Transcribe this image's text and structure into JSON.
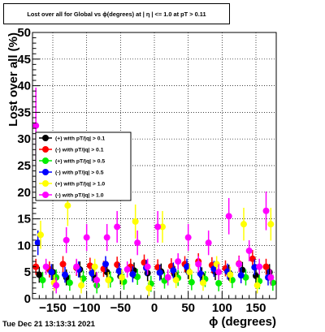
{
  "chart_data": {
    "type": "scatter",
    "title": "Lost over all for Global vs ϕ(degrees) at | η | <= 1.0 at pT > 0.11",
    "xlabel": "ϕ (degrees)",
    "ylabel": "Lost over all (%)",
    "xlim": [
      -180,
      180
    ],
    "ylim": [
      0,
      50
    ],
    "x_ticks": [
      -150,
      -100,
      -50,
      0,
      50,
      100,
      150
    ],
    "x_tick_labels": [
      "−150",
      "−100",
      "−50",
      "0",
      "50",
      "100",
      "150"
    ],
    "y_ticks": [
      0,
      5,
      10,
      15,
      20,
      25,
      30,
      35,
      40,
      45,
      50
    ],
    "y_tick_labels": [
      "0",
      "5",
      "10",
      "15",
      "20",
      "25",
      "30",
      "35",
      "40",
      "45",
      "50"
    ],
    "grid": true,
    "legend_position": "middle-left",
    "series": [
      {
        "name": "(+) with pT/|q| > 0.1",
        "color": "#000000",
        "x": [
          -170,
          -150,
          -130,
          -110,
          -90,
          -70,
          -50,
          -30,
          -10,
          10,
          30,
          50,
          70,
          90,
          110,
          130,
          150,
          170
        ],
        "y": [
          4.5,
          5.0,
          4.0,
          5.5,
          4.5,
          5.0,
          4.2,
          5.3,
          4.8,
          5.1,
          4.6,
          5.2,
          4.4,
          5.0,
          4.9,
          5.4,
          4.3,
          5.0
        ]
      },
      {
        "name": "(-) with pT/|q| > 0.1",
        "color": "#ff0000",
        "x": [
          -175,
          -155,
          -135,
          -115,
          -95,
          -75,
          -55,
          -35,
          -15,
          5,
          25,
          45,
          65,
          85,
          105,
          125,
          145,
          165
        ],
        "y": [
          6.0,
          5.5,
          6.5,
          5.8,
          6.2,
          5.6,
          6.4,
          6.0,
          6.8,
          5.9,
          6.1,
          6.5,
          7.0,
          6.3,
          5.7,
          6.6,
          7.5,
          6.0
        ]
      },
      {
        "name": "(+) with pT/|q| > 0.5",
        "color": "#00ee00",
        "x": [
          -165,
          -145,
          -125,
          -105,
          -85,
          -65,
          -45,
          -25,
          -5,
          15,
          35,
          55,
          75,
          95,
          115,
          135,
          155,
          175
        ],
        "y": [
          3.5,
          4.0,
          3.0,
          3.8,
          2.5,
          3.6,
          3.2,
          4.1,
          2.8,
          3.4,
          3.9,
          3.1,
          3.7,
          2.9,
          3.5,
          4.0,
          3.3,
          3.0
        ]
      },
      {
        "name": "(-) with pT/|q| > 0.5",
        "color": "#0000ff",
        "x": [
          -172,
          -152,
          -132,
          -112,
          -92,
          -72,
          -52,
          -32,
          -12,
          8,
          28,
          48,
          68,
          88,
          108,
          128,
          148,
          168
        ],
        "y": [
          10.5,
          5.0,
          4.5,
          5.5,
          4.8,
          6.5,
          5.2,
          4.6,
          5.8,
          4.9,
          5.3,
          6.0,
          4.7,
          5.6,
          5.1,
          4.4,
          5.9,
          4.0
        ]
      },
      {
        "name": "(+) with pT/|q| > 1.0",
        "color": "#ffff00",
        "x": [
          -168,
          -148,
          -128,
          -108,
          -88,
          -68,
          -48,
          -28,
          -8,
          12,
          32,
          52,
          72,
          92,
          112,
          132,
          152,
          172
        ],
        "y": [
          12.0,
          3.0,
          17.5,
          2.5,
          6.0,
          3.5,
          4.0,
          14.5,
          2.0,
          13.5,
          3.5,
          5.0,
          3.0,
          6.5,
          4.5,
          14.0,
          2.5,
          14.0
        ]
      },
      {
        "name": "(-) with pT/|q| > 1.0",
        "color": "#ff00ff",
        "x": [
          -175,
          -160,
          -145,
          -130,
          -115,
          -100,
          -85,
          -70,
          -55,
          -40,
          -25,
          -10,
          5,
          20,
          35,
          50,
          65,
          80,
          95,
          110,
          125,
          140,
          155,
          165,
          172
        ],
        "y": [
          32.5,
          6.0,
          2.5,
          11.0,
          6.0,
          11.5,
          3.5,
          11.5,
          13.5,
          5.5,
          10.5,
          6.0,
          13.5,
          4.0,
          7.0,
          11.5,
          6.5,
          10.5,
          5.0,
          15.5,
          6.5,
          9.0,
          6.0,
          16.5,
          4.0
        ]
      }
    ]
  },
  "footer": {
    "timestamp": "Tue Dec 21 13:13:31 2021"
  }
}
